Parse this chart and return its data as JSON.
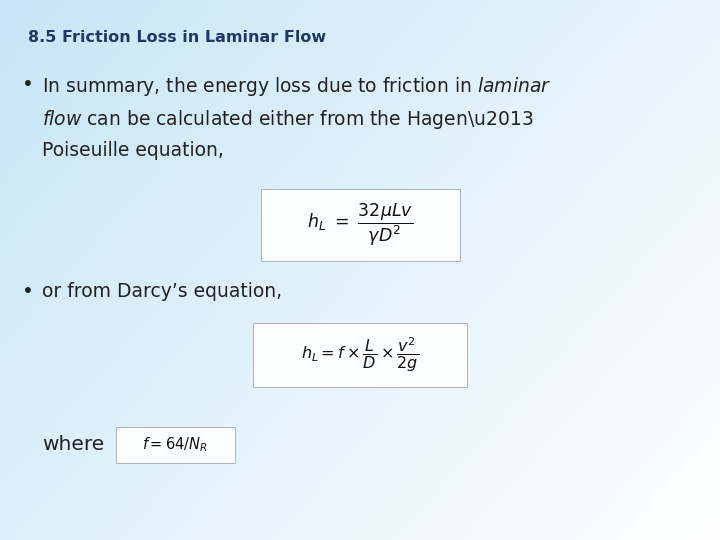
{
  "title": "8.5 Friction Loss in Laminar Flow",
  "title_color": "#1f3864",
  "title_fontsize": 11.5,
  "text_color": "#222222",
  "bullet1_line1": "In summary, the energy loss due to friction in ",
  "bullet1_line1_italic": "laminar",
  "bullet1_line2_italic": "flow",
  "bullet1_line2": " can be calculated either from the Hagen–",
  "bullet1_line3": "Poiseuille equation,",
  "bullet2": "or from Darcy’s equation,",
  "where_text": "where",
  "eq1_latex": "$h_L \\ = \\ \\dfrac{32\\mu Lv}{\\gamma D^2}$",
  "eq2_latex": "$h_L = f \\times \\dfrac{L}{D} \\times \\dfrac{v^2}{2g}$",
  "eq3_latex": "$f = 64/N_R$",
  "fontsize_body": 13.5,
  "fontsize_eq1": 12.5,
  "fontsize_eq2": 11.5,
  "fontsize_eq3": 10.5,
  "grad_color_topleft": [
    0.78,
    0.9,
    0.97
  ],
  "grad_color_bottomright": [
    1.0,
    1.0,
    1.0
  ]
}
